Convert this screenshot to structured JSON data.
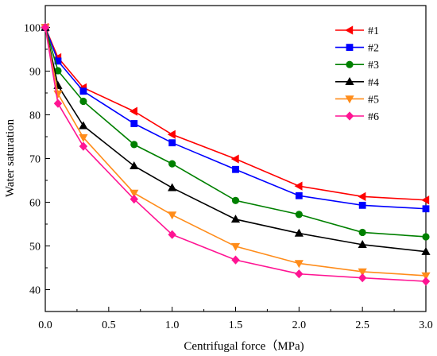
{
  "chart_data": {
    "type": "line",
    "xlabel": "Centrifugal force（MPa)",
    "ylabel": "Water saturation",
    "xlim": [
      0.0,
      3.0
    ],
    "ylim": [
      35,
      105
    ],
    "xticks": [
      "0.0",
      "0.5",
      "1.0",
      "1.5",
      "2.0",
      "2.5",
      "3.0"
    ],
    "yticks": [
      "40",
      "50",
      "60",
      "70",
      "80",
      "90",
      "100"
    ],
    "legend_position": "top-right",
    "grid": false,
    "x": [
      0,
      0.1,
      0.3,
      0.7,
      1.0,
      1.5,
      2.0,
      2.5,
      3.0
    ],
    "series": [
      {
        "name": "#1",
        "color": "#ff0000",
        "marker": "triangle-left",
        "values": [
          100,
          93.1,
          86.2,
          80.8,
          75.5,
          69.9,
          63.7,
          61.3,
          60.5
        ]
      },
      {
        "name": "#2",
        "color": "#0000ff",
        "marker": "square",
        "values": [
          100,
          92.3,
          85.4,
          78.0,
          73.6,
          67.5,
          61.5,
          59.3,
          58.5
        ]
      },
      {
        "name": "#3",
        "color": "#008000",
        "marker": "circle",
        "values": [
          100,
          90.1,
          83.1,
          73.2,
          68.8,
          60.4,
          57.2,
          53.1,
          52.1
        ]
      },
      {
        "name": "#4",
        "color": "#000000",
        "marker": "triangle-up",
        "values": [
          100,
          86.7,
          77.5,
          68.3,
          63.3,
          56.1,
          52.9,
          50.3,
          48.7
        ]
      },
      {
        "name": "#5",
        "color": "#ff8c1a",
        "marker": "triangle-down",
        "values": [
          100,
          84.8,
          74.8,
          62.1,
          57.1,
          49.9,
          46.0,
          44.1,
          43.2
        ]
      },
      {
        "name": "#6",
        "color": "#ff1493",
        "marker": "diamond",
        "values": [
          100,
          82.6,
          72.8,
          60.7,
          52.6,
          46.8,
          43.6,
          42.7,
          41.9
        ]
      }
    ]
  }
}
